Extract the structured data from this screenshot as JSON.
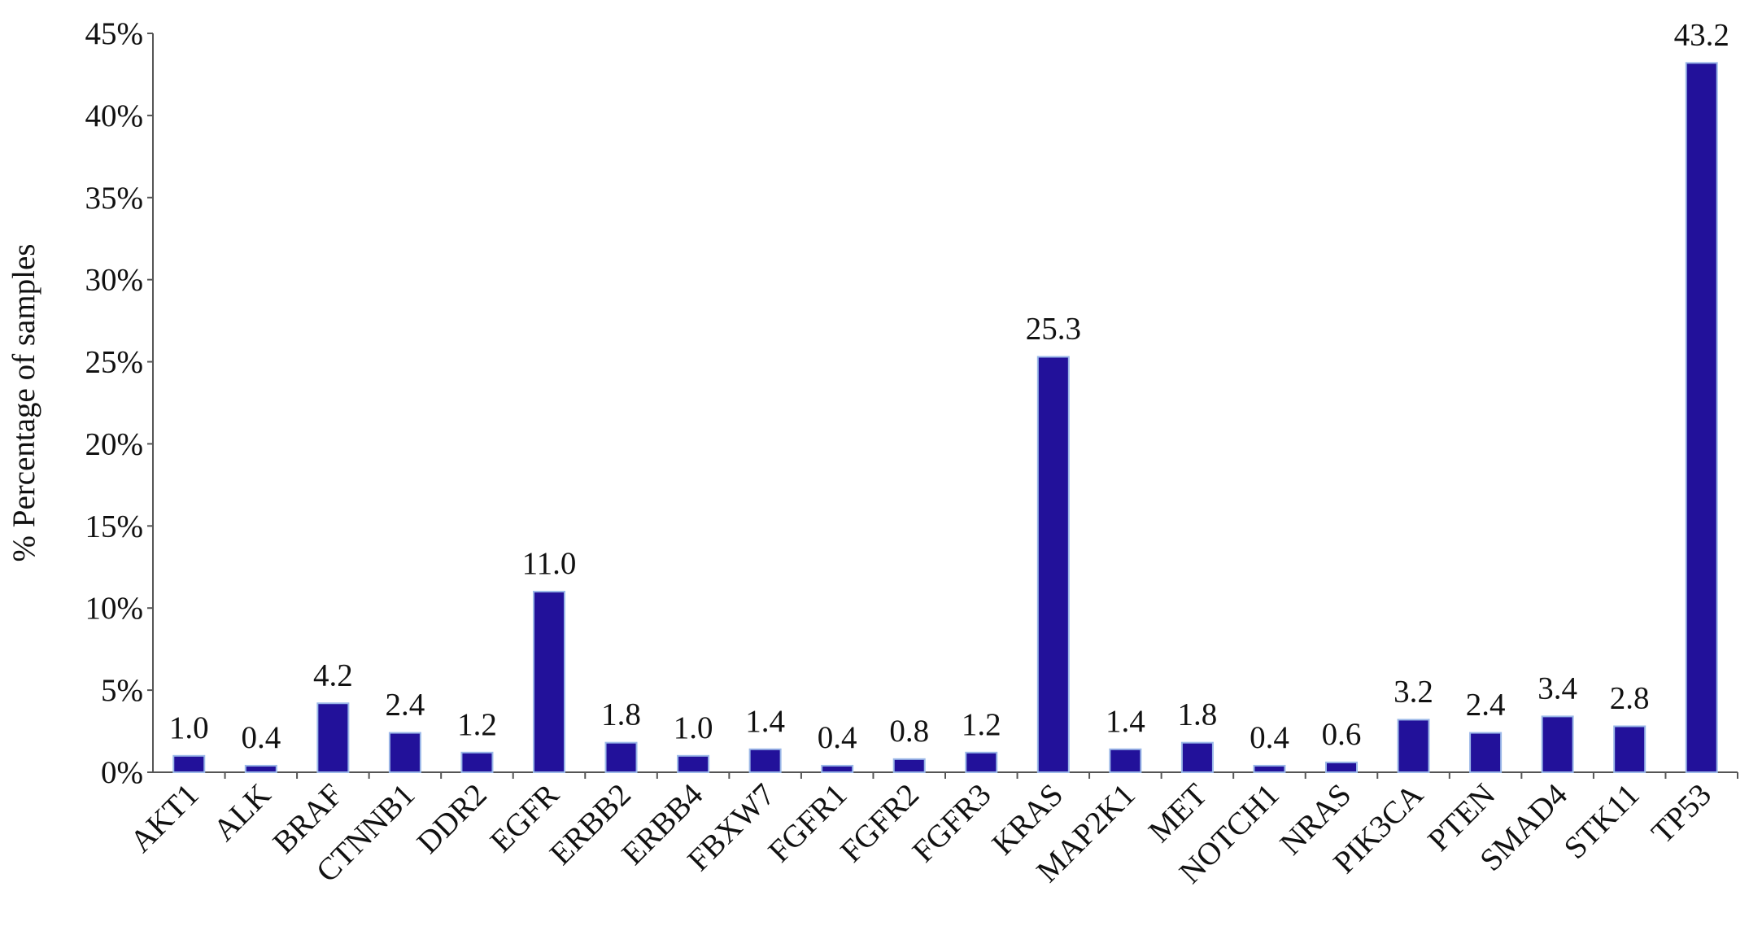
{
  "chart_data": {
    "type": "bar",
    "y_label": "% Percentage of samples",
    "categories": [
      "AKT1",
      "ALK",
      "BRAF",
      "CTNNB1",
      "DDR2",
      "EGFR",
      "ERBB2",
      "ERBB4",
      "FBXW7",
      "FGFR1",
      "FGFR2",
      "FGFR3",
      "KRAS",
      "MAP2K1",
      "MET",
      "NOTCH1",
      "NRAS",
      "PIK3CA",
      "PTEN",
      "SMAD4",
      "STK11",
      "TP53"
    ],
    "values": [
      1.0,
      0.4,
      4.2,
      2.4,
      1.2,
      11.0,
      1.8,
      1.0,
      1.4,
      0.4,
      0.8,
      1.2,
      25.3,
      1.4,
      1.8,
      0.4,
      0.6,
      3.2,
      2.4,
      3.4,
      2.8,
      43.2
    ],
    "value_labels": [
      "1.0",
      "0.4",
      "4.2",
      "2.4",
      "1.2",
      "11.0",
      "1.8",
      "1.0",
      "1.4",
      "0.4",
      "0.8",
      "1.2",
      "25.3",
      "1.4",
      "1.8",
      "0.4",
      "0.6",
      "3.2",
      "2.4",
      "3.4",
      "2.8",
      "43.2"
    ],
    "color": "#22119a",
    "ylim": [
      0,
      45
    ],
    "yticks": [
      {
        "value": 0,
        "label": "0%"
      },
      {
        "value": 5,
        "label": "5%"
      },
      {
        "value": 10,
        "label": "10%"
      },
      {
        "value": 15,
        "label": "15%"
      },
      {
        "value": 20,
        "label": "20%"
      },
      {
        "value": 25,
        "label": "25%"
      },
      {
        "value": 30,
        "label": "30%"
      },
      {
        "value": 35,
        "label": "35%"
      },
      {
        "value": 40,
        "label": "40%"
      },
      {
        "value": 45,
        "label": "45%"
      }
    ],
    "grid": false
  }
}
